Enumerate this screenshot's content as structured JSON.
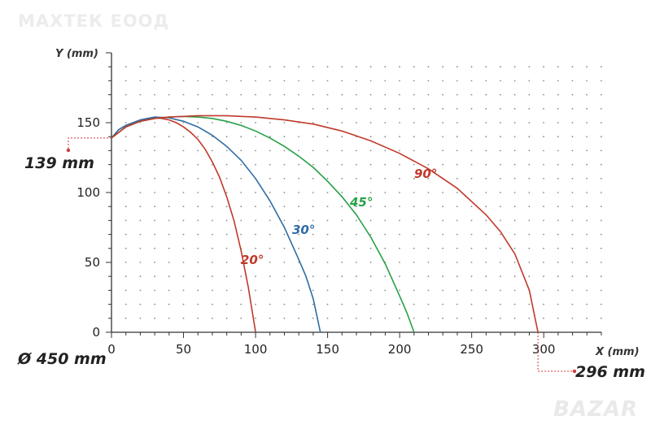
{
  "watermark": "МАХТЕК ЕООД",
  "logo": "BAZAR",
  "chart_data": {
    "type": "line",
    "xlabel": "X (mm)",
    "ylabel": "Y (mm)",
    "xlim": [
      0,
      340
    ],
    "ylim": [
      0,
      200
    ],
    "x_ticks": [
      0,
      50,
      100,
      150,
      200,
      250,
      300
    ],
    "y_ticks": [
      0,
      50,
      100,
      150
    ],
    "grid": "dotted",
    "series": [
      {
        "name": "20°",
        "color": "#c0392b",
        "points": [
          [
            0,
            139
          ],
          [
            5,
            145
          ],
          [
            10,
            148
          ],
          [
            15,
            150
          ],
          [
            20,
            152
          ],
          [
            25,
            153
          ],
          [
            30,
            153.5
          ],
          [
            35,
            153
          ],
          [
            40,
            152
          ],
          [
            45,
            150
          ],
          [
            50,
            147
          ],
          [
            55,
            143
          ],
          [
            60,
            138
          ],
          [
            65,
            131
          ],
          [
            70,
            122
          ],
          [
            75,
            111
          ],
          [
            80,
            97
          ],
          [
            85,
            80
          ],
          [
            90,
            58
          ],
          [
            95,
            32
          ],
          [
            100,
            0
          ]
        ]
      },
      {
        "name": "30°",
        "color": "#2e6da4",
        "points": [
          [
            0,
            139
          ],
          [
            5,
            145
          ],
          [
            10,
            148
          ],
          [
            15,
            150
          ],
          [
            20,
            152
          ],
          [
            25,
            153
          ],
          [
            30,
            154
          ],
          [
            40,
            153.5
          ],
          [
            50,
            151
          ],
          [
            60,
            147
          ],
          [
            70,
            141
          ],
          [
            80,
            133
          ],
          [
            90,
            123
          ],
          [
            100,
            110
          ],
          [
            110,
            94
          ],
          [
            120,
            75
          ],
          [
            130,
            52
          ],
          [
            135,
            40
          ],
          [
            140,
            24
          ],
          [
            145,
            0
          ]
        ]
      },
      {
        "name": "45°",
        "color": "#27a046",
        "points": [
          [
            0,
            139
          ],
          [
            10,
            147
          ],
          [
            20,
            151
          ],
          [
            30,
            153
          ],
          [
            40,
            154
          ],
          [
            50,
            154.5
          ],
          [
            60,
            154
          ],
          [
            70,
            153
          ],
          [
            80,
            151
          ],
          [
            90,
            148
          ],
          [
            100,
            144
          ],
          [
            110,
            139
          ],
          [
            120,
            133
          ],
          [
            130,
            126
          ],
          [
            140,
            118
          ],
          [
            150,
            108
          ],
          [
            160,
            97
          ],
          [
            170,
            84
          ],
          [
            180,
            68
          ],
          [
            190,
            49
          ],
          [
            200,
            26
          ],
          [
            205,
            14
          ],
          [
            210,
            0
          ]
        ]
      },
      {
        "name": "90°",
        "color": "#c0392b",
        "points": [
          [
            0,
            139
          ],
          [
            10,
            147
          ],
          [
            20,
            151
          ],
          [
            30,
            153
          ],
          [
            40,
            154
          ],
          [
            50,
            154.5
          ],
          [
            60,
            155
          ],
          [
            70,
            155
          ],
          [
            80,
            155
          ],
          [
            90,
            154.5
          ],
          [
            100,
            154
          ],
          [
            120,
            152
          ],
          [
            140,
            149
          ],
          [
            160,
            144
          ],
          [
            180,
            137
          ],
          [
            200,
            128
          ],
          [
            220,
            117
          ],
          [
            240,
            103
          ],
          [
            260,
            84
          ],
          [
            270,
            72
          ],
          [
            280,
            56
          ],
          [
            290,
            30
          ],
          [
            296,
            0
          ]
        ]
      }
    ],
    "annotations": [
      {
        "text": "139 mm",
        "x": 0,
        "y": 139
      },
      {
        "text": "296 mm",
        "x": 296,
        "y": 0
      },
      {
        "text": "Ø 450 mm"
      }
    ]
  }
}
